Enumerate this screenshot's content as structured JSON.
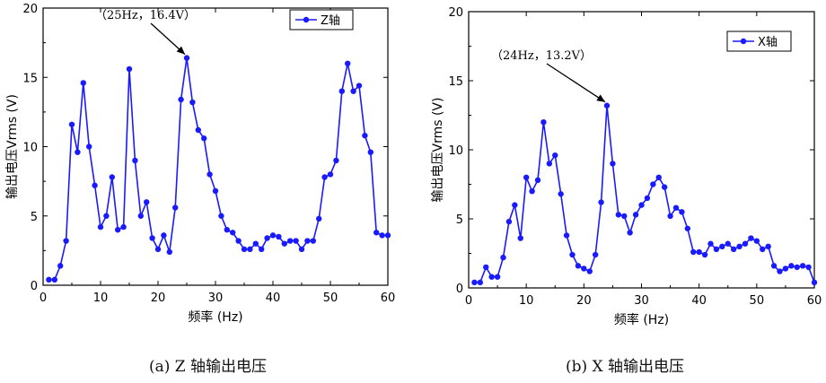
{
  "chart_data": [
    {
      "type": "line",
      "caption": "(a) Z 轴输出电压",
      "xlabel": "频率 (Hz)",
      "ylabel": "输出电压Vrms (V)",
      "xlim": [
        0,
        60
      ],
      "ylim": [
        0,
        20
      ],
      "x_ticks": [
        0,
        10,
        20,
        30,
        40,
        50,
        60
      ],
      "y_ticks": [
        0,
        5,
        10,
        15,
        20
      ],
      "grid": false,
      "legend_position": "top-right",
      "color": "#1a1aff",
      "annotation": {
        "text": "（25Hz，16.4V）",
        "x": 25,
        "y": 16.4
      },
      "series": [
        {
          "name": "Z轴",
          "x": [
            1,
            2,
            3,
            4,
            5,
            6,
            7,
            8,
            9,
            10,
            11,
            12,
            13,
            14,
            15,
            16,
            17,
            18,
            19,
            20,
            21,
            22,
            23,
            24,
            25,
            26,
            27,
            28,
            29,
            30,
            31,
            32,
            33,
            34,
            35,
            36,
            37,
            38,
            39,
            40,
            41,
            42,
            43,
            44,
            45,
            46,
            47,
            48,
            49,
            50,
            51,
            52,
            53,
            54,
            55,
            56,
            57,
            58,
            59,
            60
          ],
          "values": [
            0.4,
            0.4,
            1.4,
            3.2,
            11.6,
            9.6,
            14.6,
            10.0,
            7.2,
            4.2,
            5.0,
            7.8,
            4.0,
            4.2,
            15.6,
            9.0,
            5.0,
            6.0,
            3.4,
            2.6,
            3.6,
            2.4,
            5.6,
            13.4,
            16.4,
            13.2,
            11.2,
            10.6,
            8.0,
            6.8,
            5.0,
            4.0,
            3.8,
            3.2,
            2.6,
            2.6,
            3.0,
            2.6,
            3.4,
            3.6,
            3.5,
            3.0,
            3.2,
            3.2,
            2.6,
            3.2,
            3.2,
            4.8,
            7.8,
            8.0,
            9.0,
            14.0,
            16.0,
            14.0,
            14.4,
            10.8,
            9.6,
            3.8,
            3.6,
            3.6
          ]
        }
      ]
    },
    {
      "type": "line",
      "caption": "(b) X 轴输出电压",
      "xlabel": "频率 (Hz)",
      "ylabel": "输出电压Vrms (V)",
      "xlim": [
        0,
        60
      ],
      "ylim": [
        0,
        20
      ],
      "x_ticks": [
        0,
        10,
        20,
        30,
        40,
        50,
        60
      ],
      "y_ticks": [
        0,
        5,
        10,
        15,
        20
      ],
      "grid": false,
      "legend_position": "top-right",
      "color": "#1a1aff",
      "annotation": {
        "text": "（24Hz，13.2V）",
        "x": 24,
        "y": 13.2
      },
      "series": [
        {
          "name": "X轴",
          "x": [
            1,
            2,
            3,
            4,
            5,
            6,
            7,
            8,
            9,
            10,
            11,
            12,
            13,
            14,
            15,
            16,
            17,
            18,
            19,
            20,
            21,
            22,
            23,
            24,
            25,
            26,
            27,
            28,
            29,
            30,
            31,
            32,
            33,
            34,
            35,
            36,
            37,
            38,
            39,
            40,
            41,
            42,
            43,
            44,
            45,
            46,
            47,
            48,
            49,
            50,
            51,
            52,
            53,
            54,
            55,
            56,
            57,
            58,
            59,
            60
          ],
          "values": [
            0.4,
            0.4,
            1.5,
            0.8,
            0.8,
            2.2,
            4.8,
            6.0,
            3.6,
            8.0,
            7.0,
            7.8,
            12.0,
            9.0,
            9.6,
            6.8,
            3.8,
            2.4,
            1.6,
            1.4,
            1.2,
            2.4,
            6.2,
            13.2,
            9.0,
            5.3,
            5.2,
            4.0,
            5.3,
            6.0,
            6.5,
            7.5,
            8.0,
            7.3,
            5.2,
            5.8,
            5.5,
            4.3,
            2.6,
            2.6,
            2.4,
            3.2,
            2.8,
            3.0,
            3.2,
            2.8,
            3.0,
            3.2,
            3.6,
            3.4,
            2.8,
            3.0,
            1.6,
            1.2,
            1.4,
            1.6,
            1.5,
            1.6,
            1.5,
            0.4
          ]
        }
      ]
    }
  ]
}
